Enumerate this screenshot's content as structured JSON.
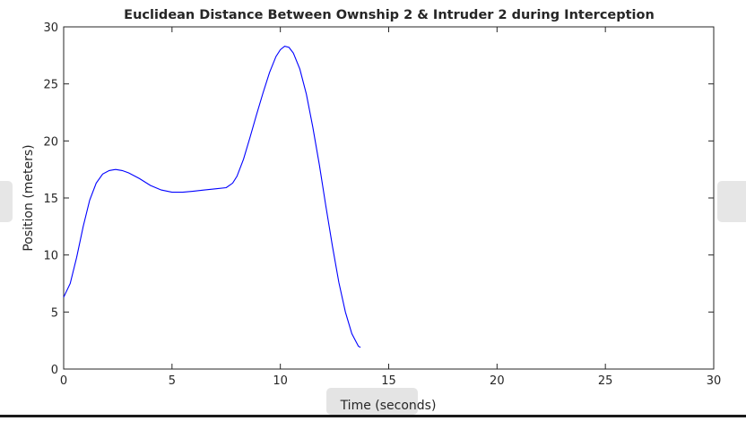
{
  "chart_data": {
    "type": "line",
    "title": "Euclidean Distance Between Ownship 2 & Intruder 2 during Interception",
    "xlabel": "Time (seconds)",
    "ylabel": "Position (meters)",
    "xlim": [
      0,
      30
    ],
    "ylim": [
      0,
      30
    ],
    "xticks": [
      0,
      5,
      10,
      15,
      20,
      25,
      30
    ],
    "yticks": [
      0,
      5,
      10,
      15,
      20,
      25,
      30
    ],
    "grid": false,
    "series": [
      {
        "color": "#0000ff",
        "x": [
          0,
          0.3,
          0.6,
          0.9,
          1.2,
          1.5,
          1.8,
          2.1,
          2.4,
          2.7,
          3.0,
          3.5,
          4.0,
          4.5,
          5.0,
          5.5,
          6.0,
          6.5,
          7.0,
          7.5,
          7.8,
          8.0,
          8.3,
          8.6,
          8.9,
          9.2,
          9.5,
          9.8,
          10.0,
          10.2,
          10.4,
          10.6,
          10.9,
          11.2,
          11.5,
          11.8,
          12.1,
          12.4,
          12.7,
          13.0,
          13.3,
          13.6,
          13.7
        ],
        "y": [
          6.3,
          7.5,
          9.8,
          12.5,
          14.8,
          16.3,
          17.1,
          17.4,
          17.5,
          17.4,
          17.2,
          16.7,
          16.1,
          15.7,
          15.5,
          15.5,
          15.6,
          15.7,
          15.8,
          15.9,
          16.3,
          16.9,
          18.4,
          20.3,
          22.3,
          24.2,
          26.0,
          27.4,
          28.0,
          28.3,
          28.2,
          27.7,
          26.3,
          24.1,
          21.2,
          17.9,
          14.3,
          10.8,
          7.6,
          5.0,
          3.1,
          2.0,
          1.9
        ]
      }
    ]
  }
}
